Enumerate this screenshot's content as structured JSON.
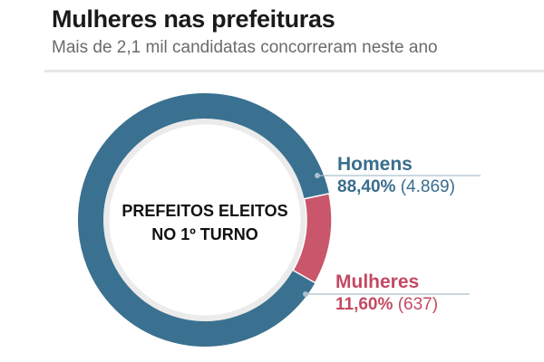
{
  "header": {
    "title": "Mulheres nas prefeituras",
    "subtitle": "Mais de 2,1 mil candidatas concorreram neste ano"
  },
  "center_label": {
    "line1": "PREFEITOS ELEITOS",
    "line2": "NO 1º TURNO"
  },
  "legend": {
    "homens": {
      "name": "Homens",
      "pct": "88,40%",
      "count": "(4.869)",
      "color": "#3a7190"
    },
    "mulheres": {
      "name": "Mulheres",
      "pct": "11,60%",
      "count": "(637)",
      "color": "#c9566a"
    }
  },
  "chart_data": {
    "type": "pie",
    "subtype": "donut",
    "title": "Mulheres nas prefeituras",
    "subtitle": "Mais de 2,1 mil candidatas concorreram neste ano",
    "center_text": "PREFEITOS ELEITOS NO 1º TURNO",
    "categories": [
      "Homens",
      "Mulheres"
    ],
    "values": [
      88.4,
      11.6
    ],
    "counts": [
      4869,
      637
    ],
    "colors": [
      "#3a7190",
      "#c9566a"
    ],
    "legend_position": "right"
  }
}
